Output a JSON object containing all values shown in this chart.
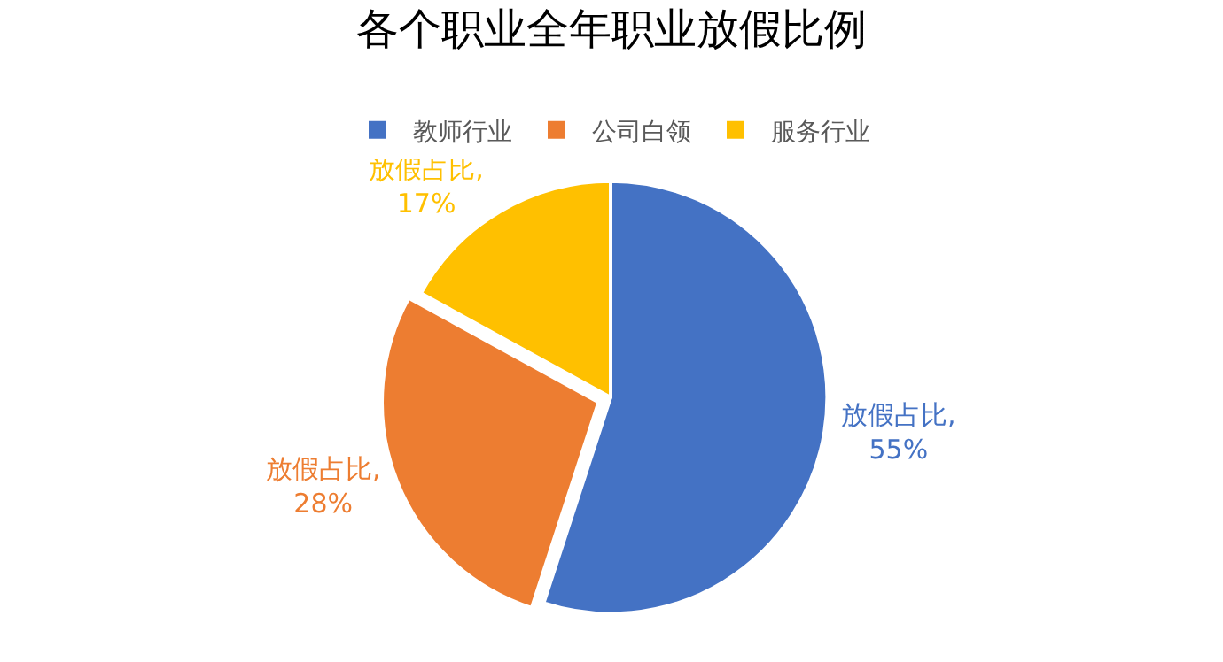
{
  "chart_data": {
    "type": "pie",
    "title": "各个职业全年职业放假比例",
    "categories": [
      "教师行业",
      "公司白领",
      "服务行业"
    ],
    "values": [
      55,
      28,
      17
    ],
    "colors": [
      "#4472c4",
      "#ed7d31",
      "#ffc000"
    ],
    "value_labels": [
      "放假占比,\n55%",
      "放假占比,\n28%",
      "放假占比,\n17%"
    ],
    "legend": "top"
  }
}
